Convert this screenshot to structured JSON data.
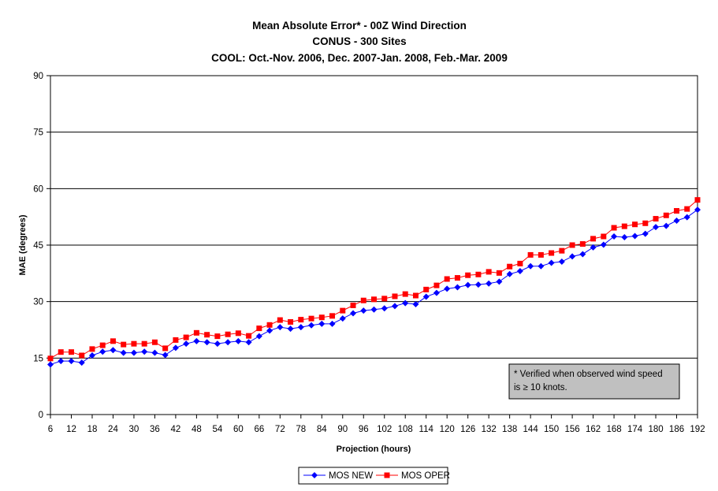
{
  "chart_data": {
    "type": "line",
    "title": "Mean Absolute Error* - 00Z Wind Direction",
    "subtitle": "CONUS - 300 Sites",
    "subtitle2": "COOL: Oct.-Nov. 2006, Dec. 2007-Jan. 2008, Feb.-Mar. 2009",
    "xlabel": "Projection (hours)",
    "ylabel": "MAE (degrees)",
    "ylim": [
      0,
      90
    ],
    "yticks": [
      0,
      15,
      30,
      45,
      60,
      75,
      90
    ],
    "xticks": [
      6,
      12,
      18,
      24,
      30,
      36,
      42,
      48,
      54,
      60,
      66,
      72,
      78,
      84,
      90,
      96,
      102,
      108,
      114,
      120,
      126,
      132,
      138,
      144,
      150,
      156,
      162,
      168,
      174,
      180,
      186,
      192
    ],
    "grid": "horizontal",
    "legend": "bottom",
    "note": {
      "line1": "* Verified when observed wind speed",
      "line2": "is ≥ 10 knots."
    },
    "x": [
      6,
      9,
      12,
      15,
      18,
      21,
      24,
      27,
      30,
      33,
      36,
      39,
      42,
      45,
      48,
      51,
      54,
      57,
      60,
      63,
      66,
      69,
      72,
      75,
      78,
      81,
      84,
      87,
      90,
      93,
      96,
      99,
      102,
      105,
      108,
      111,
      114,
      117,
      120,
      123,
      126,
      129,
      132,
      135,
      138,
      141,
      144,
      147,
      150,
      153,
      156,
      159,
      162,
      165,
      168,
      171,
      174,
      177,
      180,
      183,
      186,
      189,
      192
    ],
    "series": [
      {
        "name": "MOS NEW",
        "color": "#0000ff",
        "marker": "diamond",
        "values": [
          13.3,
          14.2,
          14.2,
          13.8,
          15.7,
          16.7,
          17.1,
          16.4,
          16.4,
          16.7,
          16.4,
          15.8,
          17.7,
          18.8,
          19.5,
          19.2,
          18.8,
          19.2,
          19.5,
          19.2,
          20.8,
          22.3,
          23.2,
          22.8,
          23.2,
          23.7,
          24.1,
          24.1,
          25.5,
          26.9,
          27.6,
          27.9,
          28.2,
          28.8,
          29.6,
          29.3,
          31.3,
          32.3,
          33.4,
          33.8,
          34.4,
          34.5,
          34.8,
          35.3,
          37.3,
          38.1,
          39.4,
          39.4,
          40.3,
          40.6,
          42.0,
          42.6,
          44.4,
          45.1,
          47.3,
          47.1,
          47.4,
          48.0,
          49.8,
          50.1,
          51.5,
          52.4,
          54.4
        ]
      },
      {
        "name": "MOS OPER",
        "color": "#ff0000",
        "marker": "square",
        "values": [
          14.9,
          16.6,
          16.6,
          15.7,
          17.4,
          18.4,
          19.5,
          18.6,
          18.8,
          18.8,
          19.2,
          17.6,
          19.8,
          20.5,
          21.7,
          21.2,
          20.8,
          21.3,
          21.6,
          20.9,
          22.9,
          23.8,
          25.1,
          24.6,
          25.2,
          25.5,
          25.8,
          26.2,
          27.6,
          29.0,
          30.3,
          30.6,
          30.8,
          31.4,
          32.0,
          31.6,
          33.2,
          34.3,
          36.0,
          36.3,
          37.0,
          37.2,
          37.9,
          37.6,
          39.3,
          40.1,
          42.4,
          42.4,
          42.9,
          43.5,
          45.0,
          45.3,
          46.7,
          47.3,
          49.6,
          50.0,
          50.5,
          50.8,
          52.0,
          52.9,
          54.1,
          54.6,
          57.0
        ]
      }
    ]
  }
}
